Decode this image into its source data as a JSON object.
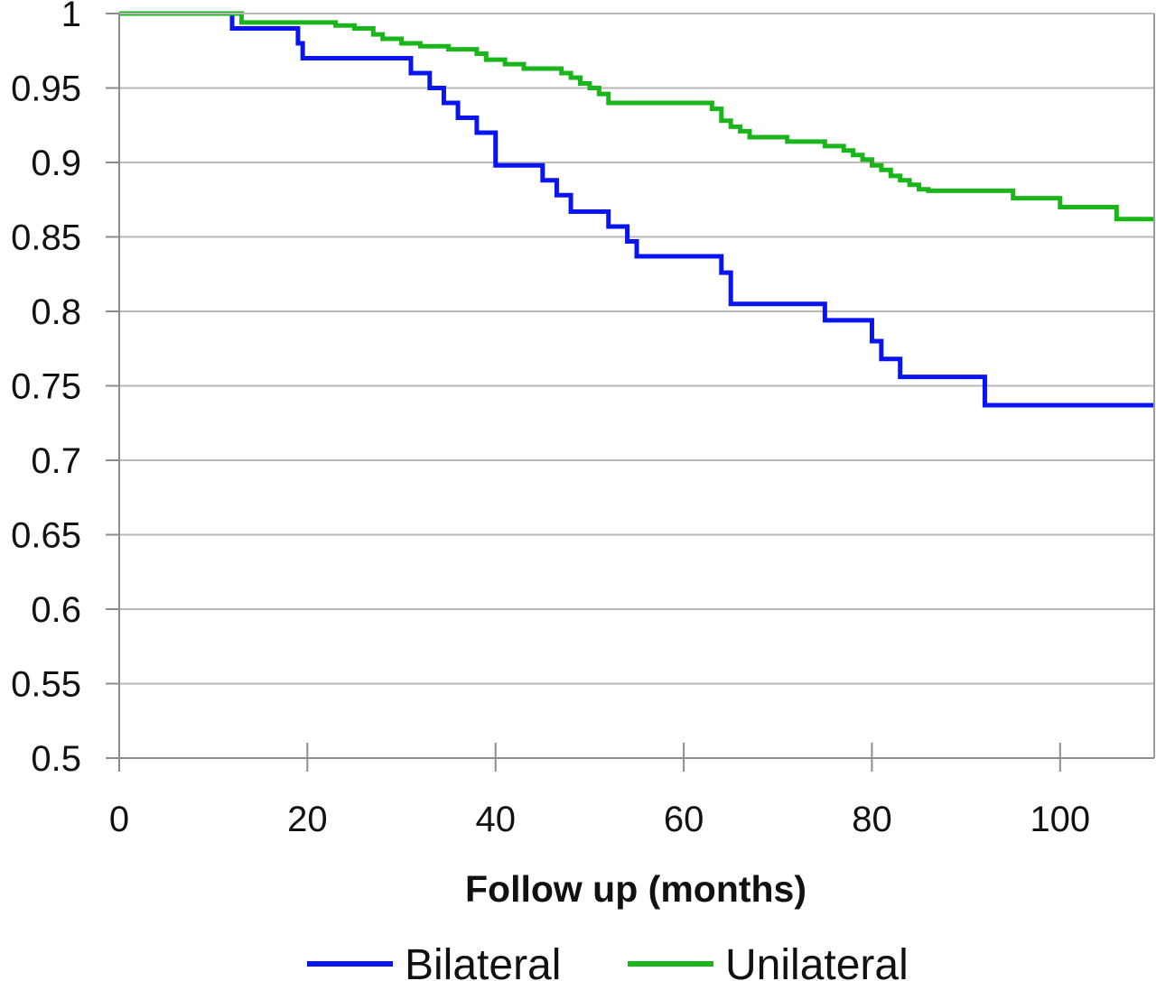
{
  "chart_data": {
    "type": "line",
    "title": "",
    "xlabel": "Follow up (months)",
    "ylabel": "",
    "xlim": [
      0,
      110
    ],
    "ylim": [
      0.5,
      1
    ],
    "x_ticks": [
      "0",
      "20",
      "40",
      "60",
      "80",
      "100"
    ],
    "y_ticks": [
      "0.5",
      "0.55",
      "0.6",
      "0.65",
      "0.7",
      "0.75",
      "0.8",
      "0.85",
      "0.9",
      "0.95",
      "1"
    ],
    "grid": "horizontal",
    "legend_position": "bottom",
    "step": true,
    "series": [
      {
        "name": "Bilateral",
        "color": "#0a14f0",
        "x": [
          0,
          12,
          19,
          19.5,
          31,
          33,
          34.5,
          36,
          38,
          40,
          45,
          46.5,
          48,
          52,
          54,
          55,
          64,
          65,
          75,
          80,
          81,
          83,
          92,
          110
        ],
        "y": [
          1,
          0.99,
          0.98,
          0.97,
          0.96,
          0.95,
          0.94,
          0.93,
          0.92,
          0.898,
          0.888,
          0.878,
          0.867,
          0.857,
          0.847,
          0.837,
          0.826,
          0.805,
          0.794,
          0.78,
          0.768,
          0.756,
          0.737,
          0.737
        ]
      },
      {
        "name": "Unilateral",
        "color": "#1ab51a",
        "x": [
          0,
          13,
          23,
          25,
          27,
          28,
          30,
          32,
          35,
          38,
          39,
          41,
          43,
          47,
          48,
          49,
          50,
          51,
          52,
          63,
          64,
          65,
          66,
          67,
          71,
          75,
          77,
          78,
          79,
          80,
          81,
          82,
          83,
          84,
          85,
          86,
          95,
          100,
          106,
          110
        ],
        "y": [
          1,
          0.994,
          0.992,
          0.99,
          0.986,
          0.983,
          0.98,
          0.978,
          0.976,
          0.973,
          0.969,
          0.966,
          0.963,
          0.96,
          0.957,
          0.953,
          0.95,
          0.946,
          0.94,
          0.936,
          0.928,
          0.924,
          0.921,
          0.917,
          0.914,
          0.911,
          0.908,
          0.905,
          0.902,
          0.898,
          0.895,
          0.891,
          0.888,
          0.885,
          0.882,
          0.881,
          0.876,
          0.87,
          0.862,
          0.862
        ]
      }
    ]
  }
}
